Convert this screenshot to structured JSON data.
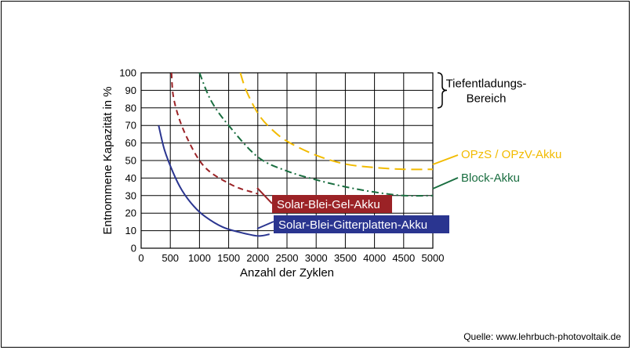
{
  "source": "Quelle: www.lehrbuch-photovoltaik.de",
  "chart_data": {
    "type": "line",
    "xlabel": "Anzahl der Zyklen",
    "ylabel": "Entnommene Kapazität in %",
    "xlim": [
      0,
      5000
    ],
    "ylim": [
      0,
      100
    ],
    "xticks": [
      0,
      500,
      1000,
      1500,
      2000,
      2500,
      3000,
      3500,
      4000,
      4500,
      5000
    ],
    "yticks": [
      0,
      10,
      20,
      30,
      40,
      50,
      60,
      70,
      80,
      90,
      100
    ],
    "grid": true,
    "bracket_label": "Tiefentladungs-\nBereich",
    "bracket_range": [
      80,
      100
    ],
    "series": [
      {
        "name": "OPzS / OPzV-Akku",
        "color": "#f2bb00",
        "dash": "long-dash",
        "label_style": "plain",
        "x": [
          1700,
          1800,
          2000,
          2200,
          2500,
          3000,
          3500,
          4000,
          4500,
          5000
        ],
        "y": [
          100,
          90,
          77,
          69,
          61,
          53,
          48,
          46,
          45,
          45
        ]
      },
      {
        "name": "Block-Akku",
        "color": "#1a6e40",
        "dash": "dash-dot",
        "label_style": "plain",
        "x": [
          1000,
          1200,
          1500,
          2000,
          2500,
          3000,
          3500,
          4000,
          4500,
          5000
        ],
        "y": [
          100,
          84,
          70,
          52,
          44,
          39,
          35,
          32,
          30,
          30
        ]
      },
      {
        "name": "Solar-Blei-Gel-Akku",
        "color": "#9b2226",
        "dash": "short-dash",
        "label_style": "box",
        "x": [
          520,
          550,
          650,
          800,
          1000,
          1200,
          1500,
          1700,
          1900,
          2000
        ],
        "y": [
          100,
          87,
          74,
          62,
          50,
          43,
          37,
          34,
          32,
          31
        ]
      },
      {
        "name": "Solar-Blei-Gitterplatten-Akku",
        "color": "#2a3590",
        "dash": "solid",
        "label_style": "box",
        "x": [
          300,
          400,
          550,
          700,
          900,
          1100,
          1400,
          1700,
          2000,
          2200
        ],
        "y": [
          70,
          56,
          43,
          33,
          24,
          18,
          12,
          9,
          7,
          8
        ]
      }
    ]
  }
}
